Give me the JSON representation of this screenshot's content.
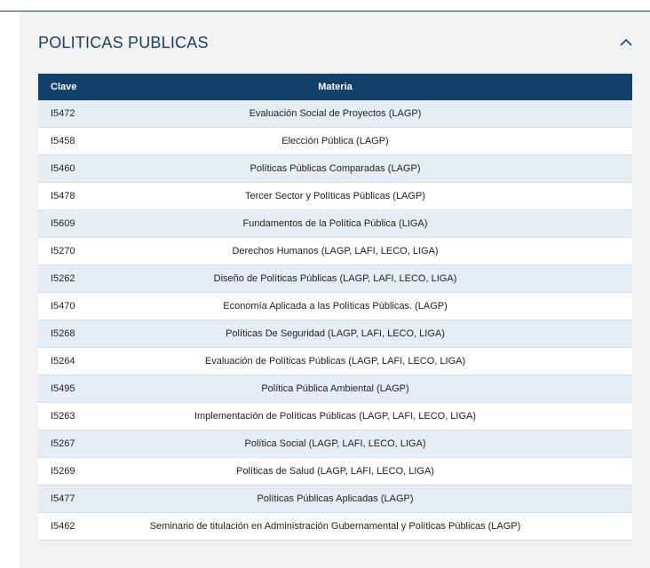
{
  "section": {
    "title": "POLITICAS PUBLICAS",
    "toggle_icon": "chevron-up-icon"
  },
  "table": {
    "headers": {
      "clave": "Clave",
      "materia": "Materia"
    },
    "rows": [
      {
        "clave": "I5472",
        "materia": "Evaluación Social de Proyectos (LAGP)"
      },
      {
        "clave": "I5458",
        "materia": "Elección Pública (LAGP)"
      },
      {
        "clave": "I5460",
        "materia": "Políticas Públicas Comparadas (LAGP)"
      },
      {
        "clave": "I5478",
        "materia": "Tercer Sector y Políticas Públicas (LAGP)"
      },
      {
        "clave": "I5609",
        "materia": "Fundamentos de la Política Pública (LIGA)"
      },
      {
        "clave": "I5270",
        "materia": "Derechos Humanos (LAGP, LAFI, LECO, LIGA)"
      },
      {
        "clave": "I5262",
        "materia": "Diseño de Políticas Públicas (LAGP, LAFI, LECO, LIGA)"
      },
      {
        "clave": "I5470",
        "materia": "Economía Aplicada a las Políticas Públicas. (LAGP)"
      },
      {
        "clave": "I5268",
        "materia": "Políticas De Seguridad (LAGP, LAFI, LECO, LIGA)"
      },
      {
        "clave": "I5264",
        "materia": "Evaluación de Políticas Públicas (LAGP, LAFI, LECO, LIGA)"
      },
      {
        "clave": "I5495",
        "materia": "Política Pública Ambiental (LAGP)"
      },
      {
        "clave": "I5263",
        "materia": "Implementación de Políticas Públicas (LAGP, LAFI, LECO, LIGA)"
      },
      {
        "clave": "I5267",
        "materia": "Política Social (LAGP, LAFI, LECO, LIGA)"
      },
      {
        "clave": "I5269",
        "materia": "Políticas de Salud (LAGP, LAFI, LECO, LIGA)"
      },
      {
        "clave": "I5477",
        "materia": "Políticas Públicas Aplicadas (LAGP)"
      },
      {
        "clave": "I5462",
        "materia": "Seminario de titulación en Administración Gubernamental y Políticas Públicas (LAGP)"
      }
    ]
  },
  "colors": {
    "header_bg": "#11406b",
    "title_color": "#1d3f66",
    "row_alt_bg": "#e6edf5",
    "panel_bg": "#f2f2f2"
  }
}
